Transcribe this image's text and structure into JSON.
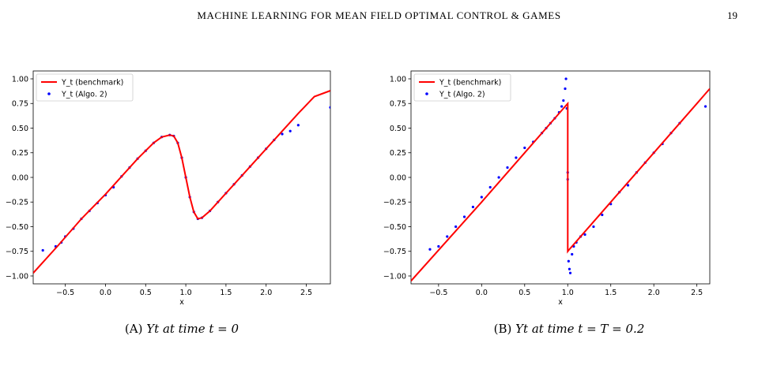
{
  "header": {
    "running_title": "MACHINE LEARNING FOR MEAN FIELD OPTIMAL CONTROL & GAMES",
    "page_number": "19"
  },
  "colors": {
    "benchmark": "#ff0000",
    "algo": "#0000ff",
    "axes": "#000000"
  },
  "chart_data": [
    {
      "type": "line",
      "caption_label": "(A)",
      "caption_text": "Yt at time t = 0",
      "xlabel": "x",
      "ylabel": "",
      "xlim": [
        -0.9,
        2.8
      ],
      "ylim": [
        -1.08,
        1.08
      ],
      "xticks": [
        -0.5,
        0.0,
        0.5,
        1.0,
        1.5,
        2.0,
        2.5
      ],
      "xtick_labels": [
        "−0.5",
        "0.0",
        "0.5",
        "1.0",
        "1.5",
        "2.0",
        "2.5"
      ],
      "yticks": [
        -1.0,
        -0.75,
        -0.5,
        -0.25,
        0.0,
        0.25,
        0.5,
        0.75,
        1.0
      ],
      "ytick_labels": [
        "−1.00",
        "−0.75",
        "−0.50",
        "−0.25",
        "0.00",
        "0.25",
        "0.50",
        "0.75",
        "1.00"
      ],
      "legend_position": "top-left",
      "series": [
        {
          "name": "Y_t (benchmark)",
          "style": "line",
          "x": [
            -0.9,
            -0.6,
            -0.3,
            0.0,
            0.2,
            0.4,
            0.6,
            0.7,
            0.8,
            0.85,
            0.9,
            0.95,
            1.0,
            1.05,
            1.1,
            1.15,
            1.2,
            1.3,
            1.4,
            1.6,
            1.8,
            2.0,
            2.2,
            2.4,
            2.6,
            2.8
          ],
          "y": [
            -0.97,
            -0.7,
            -0.42,
            -0.17,
            0.01,
            0.19,
            0.35,
            0.41,
            0.43,
            0.42,
            0.35,
            0.2,
            0.0,
            -0.2,
            -0.35,
            -0.42,
            -0.41,
            -0.34,
            -0.25,
            -0.07,
            0.11,
            0.29,
            0.47,
            0.65,
            0.82,
            0.88
          ]
        },
        {
          "name": "Y_t (Algo. 2)",
          "style": "scatter",
          "x": [
            -0.78,
            -0.62,
            -0.55,
            -0.5,
            -0.4,
            -0.3,
            -0.2,
            -0.1,
            0.0,
            0.1,
            0.2,
            0.3,
            0.4,
            0.5,
            0.6,
            0.7,
            0.8,
            0.85,
            0.9,
            0.95,
            1.0,
            1.05,
            1.1,
            1.15,
            1.2,
            1.3,
            1.4,
            1.5,
            1.6,
            1.7,
            1.8,
            1.9,
            2.0,
            2.1,
            2.2,
            2.3,
            2.4,
            2.8
          ],
          "y": [
            -0.74,
            -0.7,
            -0.66,
            -0.6,
            -0.52,
            -0.42,
            -0.34,
            -0.26,
            -0.18,
            -0.1,
            0.01,
            0.1,
            0.19,
            0.27,
            0.35,
            0.41,
            0.43,
            0.42,
            0.35,
            0.2,
            0.0,
            -0.2,
            -0.35,
            -0.42,
            -0.41,
            -0.34,
            -0.25,
            -0.16,
            -0.07,
            0.02,
            0.11,
            0.2,
            0.29,
            0.38,
            0.44,
            0.47,
            0.53,
            0.71
          ]
        }
      ]
    },
    {
      "type": "line",
      "caption_label": "(B)",
      "caption_text": "Yt at time t = T = 0.2",
      "xlabel": "x",
      "ylabel": "",
      "xlim": [
        -0.82,
        2.65
      ],
      "ylim": [
        -1.08,
        1.08
      ],
      "xticks": [
        -0.5,
        0.0,
        0.5,
        1.0,
        1.5,
        2.0,
        2.5
      ],
      "xtick_labels": [
        "−0.5",
        "0.0",
        "0.5",
        "1.0",
        "1.5",
        "2.0",
        "2.5"
      ],
      "yticks": [
        -1.0,
        -0.75,
        -0.5,
        -0.25,
        0.0,
        0.25,
        0.5,
        0.75,
        1.0
      ],
      "ytick_labels": [
        "−1.00",
        "−0.75",
        "−0.50",
        "−0.25",
        "0.00",
        "0.25",
        "0.50",
        "0.75",
        "1.00"
      ],
      "legend_position": "top-left",
      "series": [
        {
          "name": "Y_t (benchmark)",
          "style": "line",
          "x": [
            -0.82,
            0.0,
            0.5,
            0.99,
            1.0,
            1.0,
            1.01,
            1.5,
            2.0,
            2.5,
            2.65
          ],
          "y": [
            -1.05,
            -0.25,
            0.25,
            0.74,
            0.75,
            -0.75,
            -0.74,
            -0.25,
            0.25,
            0.75,
            0.9
          ]
        },
        {
          "name": "Y_t (Algo. 2)",
          "style": "scatter",
          "x": [
            -0.6,
            -0.5,
            -0.4,
            -0.3,
            -0.2,
            -0.1,
            0.0,
            0.1,
            0.2,
            0.3,
            0.4,
            0.5,
            0.6,
            0.7,
            0.75,
            0.8,
            0.85,
            0.9,
            0.93,
            0.95,
            0.97,
            0.98,
            0.99,
            1.0,
            1.0,
            1.01,
            1.02,
            1.03,
            1.05,
            1.07,
            1.1,
            1.15,
            1.2,
            1.3,
            1.4,
            1.5,
            1.6,
            1.7,
            1.8,
            1.9,
            2.0,
            2.1,
            2.2,
            2.3,
            2.6
          ],
          "y": [
            -0.73,
            -0.7,
            -0.6,
            -0.5,
            -0.4,
            -0.3,
            -0.2,
            -0.1,
            0.0,
            0.1,
            0.2,
            0.3,
            0.36,
            0.45,
            0.5,
            0.55,
            0.6,
            0.66,
            0.72,
            0.78,
            0.9,
            1.0,
            0.7,
            0.05,
            -0.02,
            -0.85,
            -0.93,
            -0.97,
            -0.78,
            -0.7,
            -0.66,
            -0.6,
            -0.58,
            -0.5,
            -0.38,
            -0.27,
            -0.15,
            -0.08,
            0.05,
            0.15,
            0.25,
            0.34,
            0.45,
            0.55,
            0.72
          ]
        }
      ]
    }
  ]
}
